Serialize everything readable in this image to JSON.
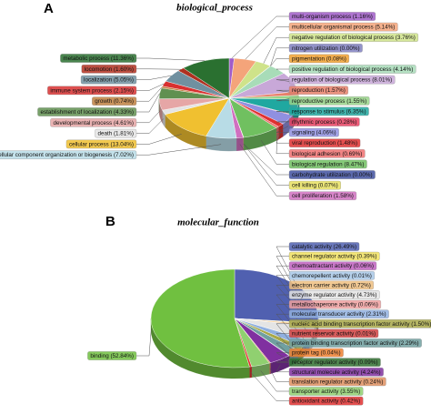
{
  "chart_data": [
    {
      "type": "pie",
      "panel": "A",
      "title": "biological_process",
      "categories": [
        "multi-organism process (1.16%)",
        "multicellular organismal process (5.14%)",
        "negative regulation of biological process (3.76%)",
        "nitrogen utilization (0.00%)",
        "pigmentation (0.08%)",
        "positive regulation of biological process (4.14%)",
        "regulation of biological process (8.01%)",
        "reproduction (1.57%)",
        "reproductive process (1.55%)",
        "response to stimulus (6.35%)",
        "rhythmic process (0.28%)",
        "signaling (4.06%)",
        "viral reproduction (1.48%)",
        "biological adhesion (0.69%)",
        "biological regulation (8.47%)",
        "carbohydrate utilization (0.00%)",
        "cell killing (0.07%)",
        "cell proliferation (1.58%)",
        "cellular component organization or biogenesis (7.02%)",
        "cellular process (13.04%)",
        "death (1.81%)",
        "developmental process (4.61%)",
        "establishment of localization (4.33%)",
        "growth (0.74%)",
        "immune system process (2.15%)",
        "localization (5.05%)",
        "locomotion (1.60%)",
        "metabolic process (11.36%)"
      ],
      "values": [
        1.16,
        5.14,
        3.76,
        0.0,
        0.08,
        4.14,
        8.01,
        1.57,
        1.55,
        6.35,
        0.28,
        4.06,
        1.48,
        0.69,
        8.47,
        0.0,
        0.07,
        1.58,
        7.02,
        13.04,
        1.81,
        4.61,
        4.33,
        0.74,
        2.15,
        5.05,
        1.6,
        11.36
      ],
      "colors": [
        "#a05cc8",
        "#f4a47a",
        "#cfe38a",
        "#8080c0",
        "#f0a030",
        "#a8dcb8",
        "#c8a8d8",
        "#e8806a",
        "#98d488",
        "#20a8a0",
        "#e84060",
        "#9090e0",
        "#e03030",
        "#f07070",
        "#70c060",
        "#4050a0",
        "#e8e060",
        "#d070c0",
        "#b8dce6",
        "#f0c030",
        "#e4e4e4",
        "#e6a6a6",
        "#609050",
        "#c08040",
        "#d83030",
        "#7090a0",
        "#b03020",
        "#2a7030"
      ]
    },
    {
      "type": "pie",
      "panel": "B",
      "title": "molecular_function",
      "categories": [
        "catalytic activity (26.49%)",
        "channel regulator activity (0.39%)",
        "chemoattractant activity (0.06%)",
        "chemorepellent activity (0.01%)",
        "electron carrier activity (0.72%)",
        "enzyme regulator activity (4.73%)",
        "metallochaperone activity (0.06%)",
        "molecular transducer activity (2.31%)",
        "nucleic acid binding transcription factor activity (1.50%)",
        "nutrient reservoir activity (0.01%)",
        "protein binding transcription factor activity (2.29%)",
        "protein tag (0.04%)",
        "receptor regulator activity (0.09%)",
        "structural molecule activity (4.24%)",
        "translation regulator activity (0.24%)",
        "transporter activity (3.55%)",
        "antioxidant activity (0.42%)",
        "binding (52.84%)"
      ],
      "values": [
        26.49,
        0.39,
        0.06,
        0.01,
        0.72,
        4.73,
        0.06,
        2.31,
        1.5,
        0.01,
        2.29,
        0.04,
        0.09,
        4.24,
        0.24,
        3.55,
        0.42,
        52.84
      ],
      "colors": [
        "#5060b0",
        "#f0e060",
        "#c060c0",
        "#a8c8e8",
        "#f0c080",
        "#e4e4e4",
        "#f0a0a0",
        "#90b0e0",
        "#a8a848",
        "#d04040",
        "#70a0a0",
        "#f08030",
        "#307030",
        "#8030a0",
        "#e09060",
        "#90d070",
        "#e03030",
        "#70c040"
      ]
    }
  ]
}
